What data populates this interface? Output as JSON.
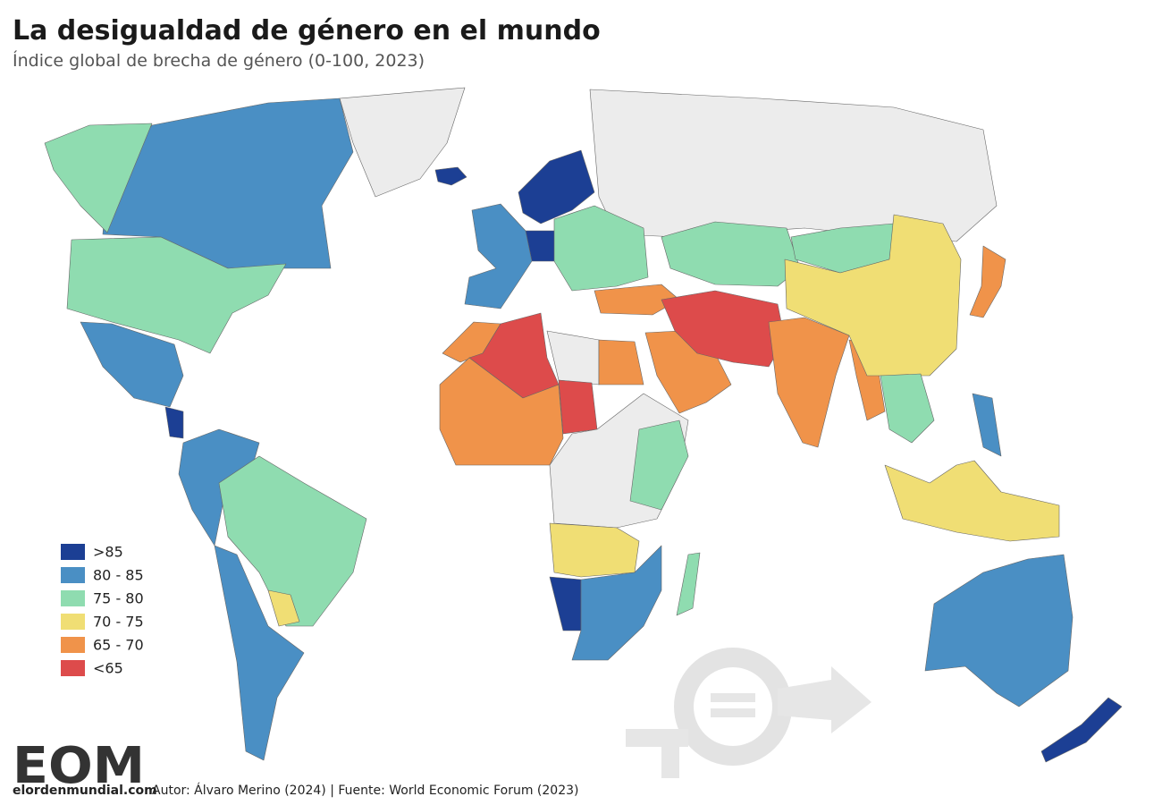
{
  "header": {
    "title": "La desigualdad de género en el mundo",
    "subtitle": "Índice global de brecha de género (0-100, 2023)"
  },
  "legend": {
    "items": [
      {
        "label": ">85",
        "color": "#1c3f94"
      },
      {
        "label": "80 - 85",
        "color": "#4a8fc4"
      },
      {
        "label": "75 - 80",
        "color": "#8fdcb0"
      },
      {
        "label": "70 - 75",
        "color": "#f0de74"
      },
      {
        "label": "65 - 70",
        "color": "#f0934a"
      },
      {
        "label": "<65",
        "color": "#dd4b4b"
      }
    ]
  },
  "logo": {
    "mark": "EOM",
    "site": "elordenmundial.com"
  },
  "footer": {
    "credit": "Autor: Álvaro Merino (2024) | Fuente: World Economic Forum (2023)"
  }
}
